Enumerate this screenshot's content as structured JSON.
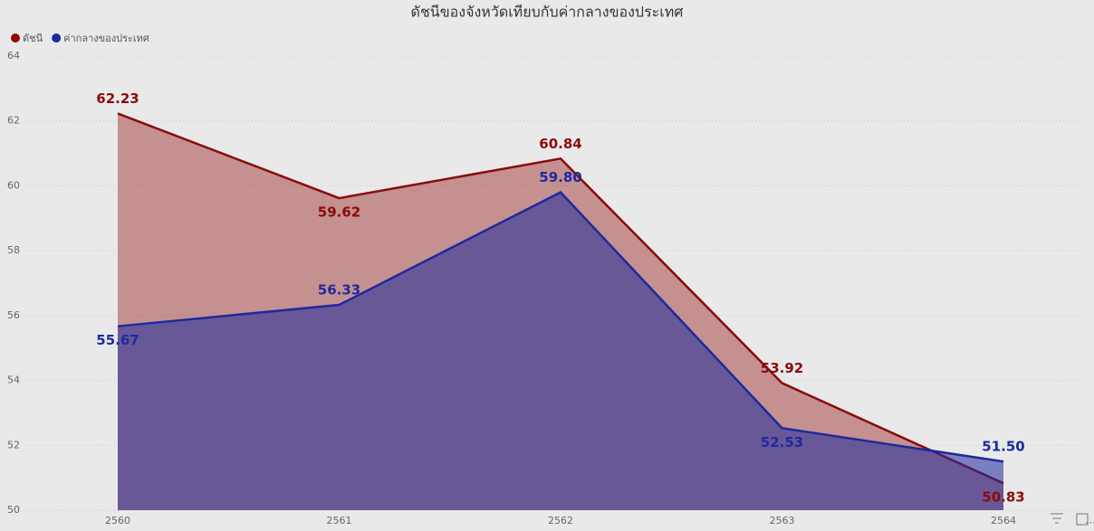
{
  "chart_data": {
    "type": "area",
    "title": "ดัชนีของจังหวัดเทียบกับค่ากลางของประเทศ",
    "categories": [
      "2560",
      "2561",
      "2562",
      "2563",
      "2564"
    ],
    "series": [
      {
        "name": "ดัชนี",
        "color": "#8b0a0a",
        "values": [
          62.23,
          59.62,
          60.84,
          53.92,
          50.83
        ],
        "value_labels": [
          "62.23",
          "59.62",
          "60.84",
          "53.92",
          "50.83"
        ]
      },
      {
        "name": "ค่ากลางของประเทศ",
        "color": "#1e2a9e",
        "values": [
          55.67,
          56.33,
          59.8,
          52.53,
          51.5
        ],
        "value_labels": [
          "55.67",
          "56.33",
          "59.80",
          "52.53",
          "51.50"
        ]
      }
    ],
    "ylim": [
      50,
      64
    ],
    "yticks": [
      50,
      52,
      54,
      56,
      58,
      60,
      62,
      64
    ],
    "grid": true,
    "legend": "top-left"
  }
}
